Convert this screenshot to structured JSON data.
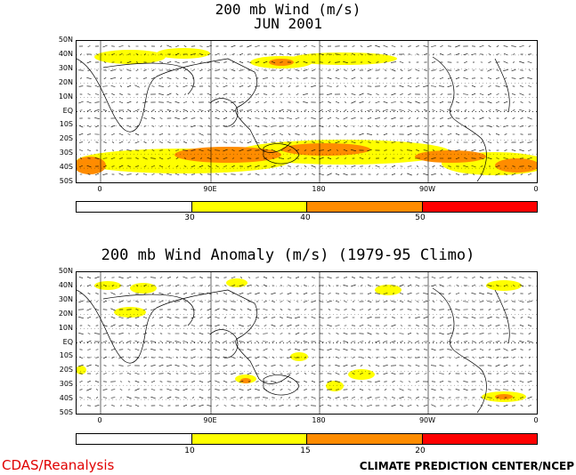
{
  "top": {
    "title_line1": "200 mb Wind (m/s)",
    "title_line2": "JUN 2001",
    "colorbar_ticks": [
      "30",
      "40",
      "50"
    ],
    "colorbar_colors": [
      "#ffffff",
      "#ffff00",
      "#ff8c00",
      "#ff0000"
    ]
  },
  "bottom": {
    "title": "200 mb Wind Anomaly (m/s) (1979-95 Climo)",
    "colorbar_ticks": [
      "10",
      "15",
      "20"
    ],
    "colorbar_colors": [
      "#ffffff",
      "#ffff00",
      "#ff8c00",
      "#ff0000"
    ]
  },
  "lat_labels": [
    "50N",
    "40N",
    "30N",
    "20N",
    "10N",
    "EQ",
    "10S",
    "20S",
    "30S",
    "40S",
    "50S"
  ],
  "lon_labels": [
    "0",
    "90E",
    "180",
    "90W",
    "0"
  ],
  "footer": {
    "left": "CDAS/Reanalysis",
    "right": "CLIMATE PREDICTION CENTER/NCEP"
  }
}
